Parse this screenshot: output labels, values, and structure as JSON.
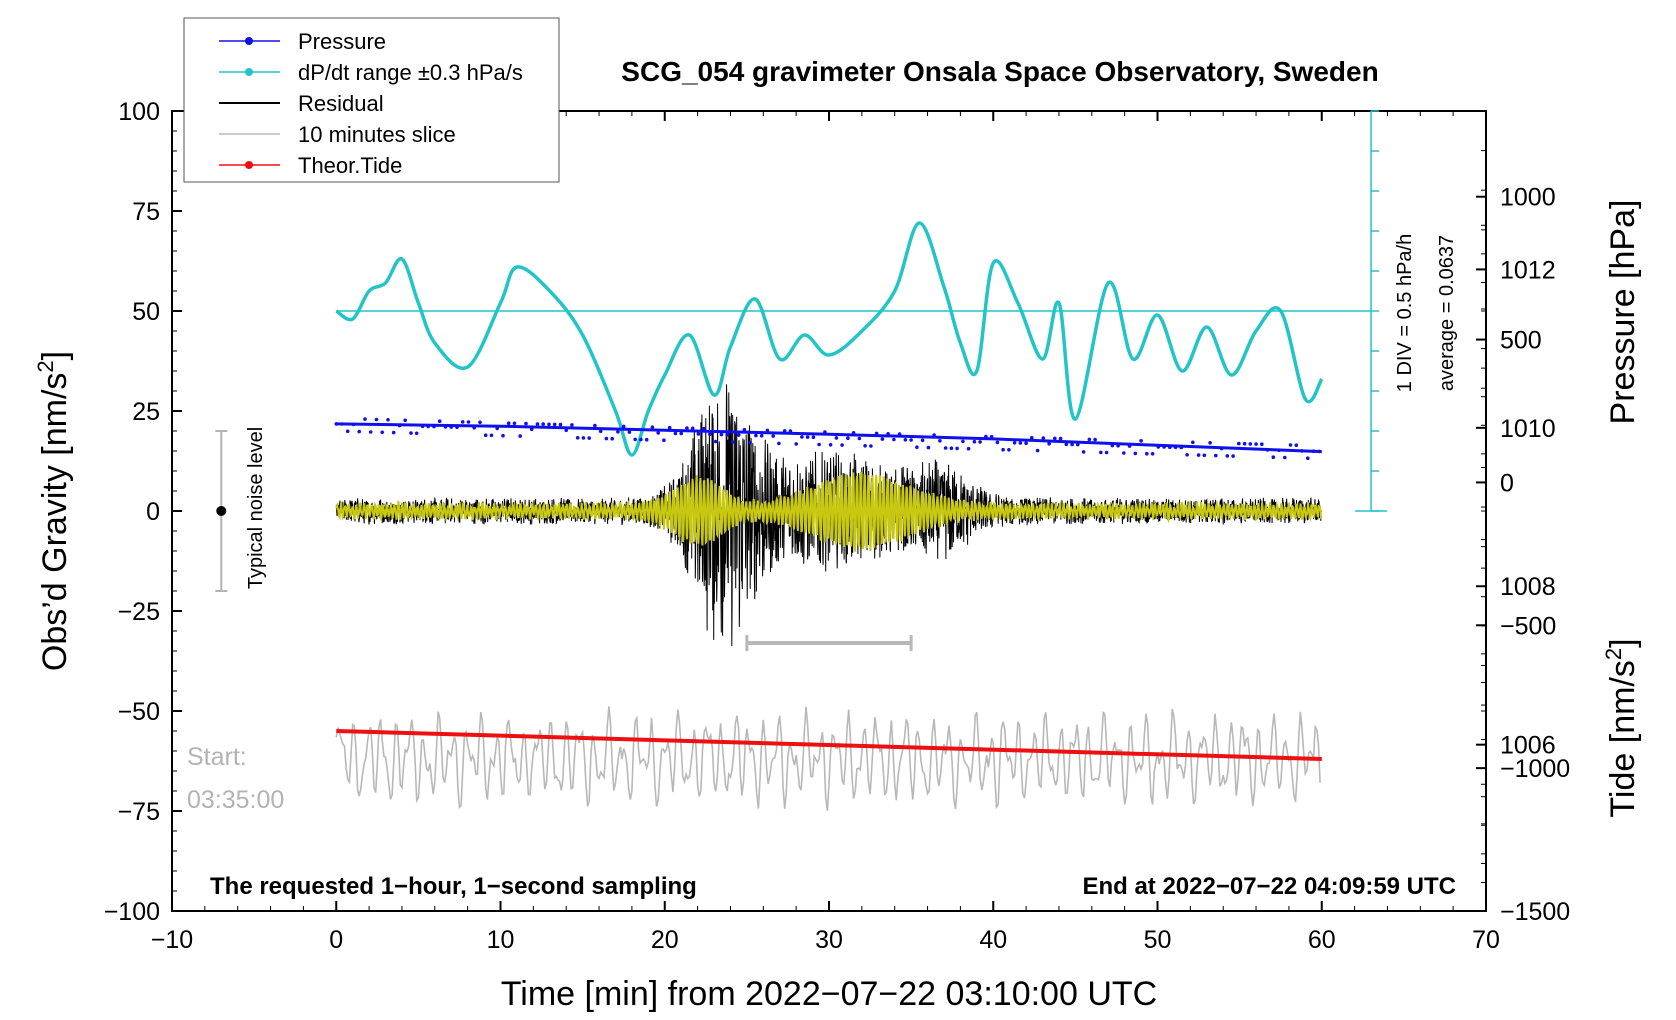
{
  "chart_data": {
    "type": "line",
    "title": "SCG_054 gravimeter Onsala Space Observatory, Sweden",
    "xlabel": "Time [min] from 2022−07−22 03:10:00 UTC",
    "ylabel_left": "Obs’d Gravity [nm/s",
    "ylabel_left_sup": "2",
    "ylabel_left_end": "]",
    "ylabel_right_top": "Pressure [hPa]",
    "ylabel_right_bottom": "Tide [nm/s",
    "ylabel_right_bottom_sup": "2",
    "ylabel_right_bottom_end": "]",
    "xlim": [
      -10,
      70
    ],
    "ylim": [
      -100,
      100
    ],
    "x_ticks": [
      -10,
      0,
      10,
      20,
      30,
      40,
      50,
      60,
      70
    ],
    "x_tick_labels": [
      "−10",
      "0",
      "10",
      "20",
      "30",
      "40",
      "50",
      "60",
      "70"
    ],
    "y_ticks": [
      -100,
      -75,
      -50,
      -25,
      0,
      25,
      50,
      75,
      100
    ],
    "y_tick_labels": [
      "−100",
      "−75",
      "−50",
      "−25",
      "0",
      "25",
      "50",
      "75",
      "100"
    ],
    "pressure_axis": {
      "ticks": [
        1006,
        1008,
        1010,
        1012
      ],
      "tick_labels": [
        "1006",
        "1008",
        "1010",
        "1012"
      ],
      "range_hpa": [
        1003.9,
        1014.0
      ]
    },
    "tide_axis": {
      "ticks": [
        1000,
        500,
        0,
        -500,
        -1000,
        -1500
      ],
      "tick_labels": [
        "1000",
        "500",
        "0",
        "−500",
        "−1000",
        "−1500"
      ],
      "range": [
        -1500,
        1300
      ]
    },
    "legend": [
      {
        "label": "Pressure",
        "color": "#1010ee",
        "marker": true
      },
      {
        "label": "dP/dt range ±0.3 hPa/s",
        "color": "#22c4c8",
        "marker": true
      },
      {
        "label": "Residual",
        "color": "#000000",
        "marker": false
      },
      {
        "label": "10 minutes slice",
        "color": "#b8b8b8",
        "marker": false
      },
      {
        "label": "Theor.Tide",
        "color": "#ee1010",
        "marker": true
      }
    ],
    "series": [
      {
        "name": "Pressure",
        "color": "#1010ee",
        "unit": "hPa",
        "x": [
          0,
          10,
          20,
          30,
          40,
          50,
          60
        ],
        "values": [
          1010.05,
          1010.02,
          1009.97,
          1009.92,
          1009.86,
          1009.78,
          1009.7
        ]
      },
      {
        "name": "dP/dt",
        "color": "#22c4c8",
        "unit": "gravity-axis",
        "x": [
          0,
          1,
          2,
          3,
          4,
          5,
          6,
          8,
          10,
          11,
          13,
          15,
          17,
          18,
          19,
          20,
          21.5,
          23,
          24,
          25.5,
          27,
          28.5,
          30,
          32,
          34,
          35.5,
          37,
          38,
          39,
          40,
          41.5,
          43,
          44,
          45,
          47,
          48.5,
          50,
          51.5,
          53,
          54.5,
          56,
          57.5,
          59,
          60
        ],
        "values": [
          50,
          48,
          55,
          57,
          63,
          52,
          42,
          36,
          52,
          61,
          55,
          44,
          25,
          14,
          25,
          34,
          44,
          29,
          41,
          53,
          38,
          44,
          39,
          45,
          55,
          72,
          56,
          42,
          35,
          62,
          52,
          38,
          52,
          23,
          57,
          38,
          49,
          35,
          46,
          34,
          45,
          50,
          28,
          33
        ]
      },
      {
        "name": "dP/dt reference",
        "color": "#22c4c8",
        "value": 50
      },
      {
        "name": "Residual",
        "color": "#000000",
        "x_range": [
          0,
          60
        ],
        "peak_at_min": 23.5,
        "peak_amplitude": 35
      },
      {
        "name": "Filtered residual",
        "color": "#c8c810",
        "x_range": [
          0,
          60
        ]
      },
      {
        "name": "10 minutes slice",
        "color": "#b8b8b8",
        "x_range": [
          0,
          60
        ],
        "baseline": -62,
        "amplitude": 12
      },
      {
        "name": "Theor.Tide",
        "color": "#ee1010",
        "x": [
          0,
          60
        ],
        "values": [
          -55,
          -62
        ]
      }
    ],
    "annotations": {
      "noise_level_label": "Typical noise level",
      "noise_level": {
        "x": -7,
        "y": 0,
        "range": [
          -20,
          20
        ]
      },
      "slice_bar": {
        "x_range": [
          25,
          35
        ],
        "y": -33
      },
      "start_label": "Start:",
      "start_time": "03:35:00",
      "bottom_left_note": "The requested 1−hour, 1−second sampling",
      "bottom_right_note": "End at 2022−07−22 04:09:59 UTC",
      "scale_div_label": "1 DIV = 0.5 hPa/h",
      "average_label": "average = 0.0637",
      "scale_bar": {
        "x": 63,
        "y_range": [
          0,
          100
        ]
      }
    }
  }
}
